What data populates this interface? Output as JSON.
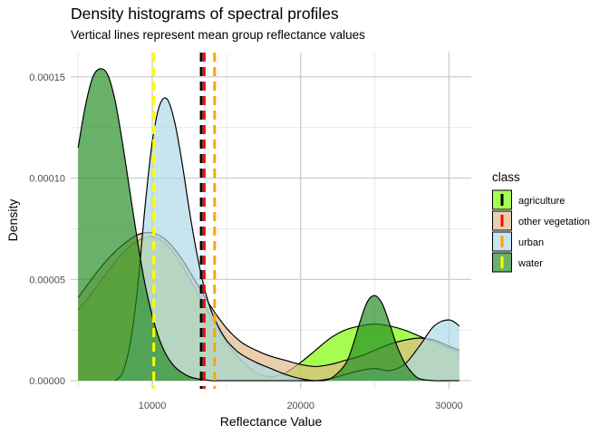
{
  "chart_data": {
    "type": "area",
    "title": "Density histograms of spectral profiles",
    "subtitle": "Vertical lines represent mean group reflectance values",
    "xlabel": "Reflectance Value",
    "ylabel": "Density",
    "xlim": [
      4500,
      31500
    ],
    "ylim": [
      -4e-06,
      0.000162
    ],
    "xticks": [
      10000,
      20000,
      30000
    ],
    "xtick_labels": [
      "10000",
      "20000",
      "30000"
    ],
    "yticks": [
      0,
      5e-05,
      0.0001,
      0.00015
    ],
    "ytick_labels": [
      "0.00000",
      "0.00005",
      "0.00010",
      "0.00015"
    ],
    "grid": true,
    "legend": {
      "title": "class",
      "placement": "right"
    },
    "series": [
      {
        "name": "agriculture",
        "fill": "#7CFC00",
        "line": "#000000",
        "mean": 13300,
        "mean_color": "#000000",
        "x": [
          5000,
          6000,
          7000,
          8000,
          9000,
          10000,
          11000,
          12000,
          13000,
          14000,
          15000,
          16000,
          17000,
          18000,
          19000,
          20000,
          21000,
          22000,
          23000,
          24000,
          25000,
          26000,
          27000,
          28000,
          29000,
          30000,
          30700
        ],
        "y": [
          3.5e-05,
          4.4e-05,
          5.4e-05,
          6.3e-05,
          6.9e-05,
          7.1e-05,
          6.7e-05,
          5.7e-05,
          4.4e-05,
          3.1e-05,
          1.9e-05,
          1e-05,
          4e-06,
          2e-06,
          4e-06,
          9e-06,
          1.5e-05,
          2.1e-05,
          2.5e-05,
          2.7e-05,
          2.8e-05,
          2.7e-05,
          2.5e-05,
          2.2e-05,
          1.9e-05,
          1.6e-05,
          1.4e-05
        ]
      },
      {
        "name": "other vegetation",
        "fill": "#DEB887",
        "line": "#000000",
        "mean": 13500,
        "mean_color": "#FF0000",
        "x": [
          5000,
          6000,
          7000,
          8000,
          9000,
          10000,
          11000,
          12000,
          13000,
          14000,
          15000,
          16000,
          17000,
          18000,
          19000,
          20000,
          21000,
          22000,
          23000,
          24000,
          25000,
          26000,
          27000,
          28000,
          29000,
          30000,
          30700
        ],
        "y": [
          4.1e-05,
          5.1e-05,
          6e-05,
          6.7e-05,
          7.2e-05,
          7.3e-05,
          6.9e-05,
          6e-05,
          4.8e-05,
          3.6e-05,
          2.6e-05,
          1.9e-05,
          1.5e-05,
          1.2e-05,
          1e-05,
          8e-06,
          7e-06,
          8e-06,
          1e-05,
          1.2e-05,
          1.5e-05,
          1.8e-05,
          2e-05,
          2.1e-05,
          2e-05,
          1.7e-05,
          1.5e-05
        ]
      },
      {
        "name": "urban",
        "fill": "#ADD8E6",
        "line": "#000000",
        "mean": 14200,
        "mean_color": "#FFA500",
        "x": [
          7500,
          8000,
          8500,
          9000,
          9500,
          10000,
          10500,
          11000,
          11500,
          12000,
          12500,
          13000,
          13500,
          14000,
          14500,
          15000,
          15500,
          16000,
          17000,
          18000,
          19000,
          20000,
          21000,
          22000,
          23000,
          24000,
          25000,
          26000,
          27000,
          28000,
          29000,
          30000,
          30700
        ],
        "y": [
          0,
          4e-06,
          1.8e-05,
          4.5e-05,
          8.5e-05,
          0.000118,
          0.000136,
          0.000139,
          0.000128,
          0.000108,
          8.4e-05,
          6.3e-05,
          4.6e-05,
          3.4e-05,
          2.6e-05,
          2e-05,
          1.6e-05,
          1.3e-05,
          9e-06,
          6e-06,
          3e-06,
          1e-06,
          0,
          1e-06,
          3e-06,
          5e-06,
          6e-06,
          5e-06,
          8e-06,
          1.7e-05,
          2.7e-05,
          3e-05,
          2.7e-05
        ]
      },
      {
        "name": "water",
        "fill": "#228B22",
        "line": "#000000",
        "mean": 10100,
        "mean_color": "#FFFF00",
        "x": [
          5000,
          5500,
          6000,
          6500,
          7000,
          7500,
          8000,
          8500,
          9000,
          9500,
          10000,
          10500,
          11000,
          11500,
          12000,
          12500,
          13000,
          13500,
          14000,
          14500,
          15000,
          15500,
          16000,
          17000,
          18000,
          19000,
          20000,
          21000,
          22000,
          23000,
          23500,
          24000,
          24500,
          25000,
          25500,
          26000,
          26500,
          27000,
          27500,
          28000,
          29000,
          30000,
          30700
        ],
        "y": [
          0.000115,
          0.000136,
          0.00015,
          0.000154,
          0.000151,
          0.000138,
          0.000117,
          9.3e-05,
          6.9e-05,
          4.8e-05,
          3.2e-05,
          2e-05,
          1.2e-05,
          7e-06,
          4e-06,
          2e-06,
          1e-06,
          5e-07,
          0,
          0,
          0,
          0,
          0,
          0,
          0,
          0,
          0,
          0,
          1e-06,
          8e-06,
          1.7e-05,
          2.9e-05,
          3.9e-05,
          4.2e-05,
          3.8e-05,
          2.8e-05,
          1.7e-05,
          9e-06,
          4e-06,
          1e-06,
          0,
          0,
          0
        ]
      }
    ]
  }
}
